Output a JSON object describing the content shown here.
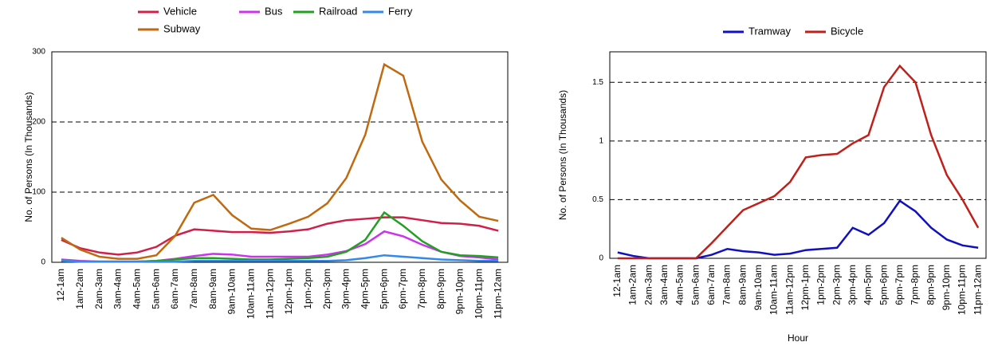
{
  "chart_data": [
    {
      "type": "line",
      "ylabel": "No. of Persons (In Thousands)",
      "categories": [
        "12-1am",
        "1am-2am",
        "2am-3am",
        "3am-4am",
        "4am-5am",
        "5am-6am",
        "6am-7am",
        "7am-8am",
        "8am-9am",
        "9am-10am",
        "10am-11am",
        "11am-12pm",
        "12pm-1pm",
        "1pm-2pm",
        "2pm-3pm",
        "3pm-4pm",
        "4pm-5pm",
        "5pm-6pm",
        "6pm-7pm",
        "7pm-8pm",
        "8pm-9pm",
        "9pm-10pm",
        "10pm-11pm",
        "11pm-12am"
      ],
      "ylim": [
        0,
        300
      ],
      "yticks": [
        0,
        100,
        200,
        300
      ],
      "grid": true,
      "series": [
        {
          "name": "Vehicle",
          "color": "#d0204a",
          "values": [
            32,
            20,
            14,
            11,
            14,
            22,
            38,
            47,
            45,
            43,
            43,
            42,
            44,
            47,
            55,
            60,
            62,
            64,
            64,
            60,
            56,
            55,
            52,
            45
          ]
        },
        {
          "name": "Bus",
          "color": "#cc33ee",
          "values": [
            4,
            2,
            1,
            1,
            1,
            2,
            5,
            9,
            12,
            11,
            8,
            8,
            8,
            8,
            11,
            16,
            26,
            44,
            37,
            25,
            15,
            9,
            7,
            4
          ]
        },
        {
          "name": "Railroad",
          "color": "#22a022",
          "values": [
            2,
            1,
            1,
            1,
            1,
            2,
            4,
            6,
            6,
            5,
            4,
            4,
            5,
            6,
            8,
            15,
            32,
            71,
            52,
            30,
            15,
            10,
            9,
            7
          ]
        },
        {
          "name": "Ferry",
          "color": "#3388ee",
          "values": [
            2,
            1,
            1,
            1,
            1,
            1,
            1,
            2,
            2,
            2,
            2,
            2,
            2,
            2,
            2,
            3,
            6,
            10,
            8,
            6,
            4,
            3,
            2,
            2
          ]
        },
        {
          "name": "Subway",
          "color": "#c06a10",
          "values": [
            35,
            18,
            8,
            5,
            5,
            10,
            38,
            85,
            96,
            67,
            48,
            46,
            55,
            65,
            84,
            120,
            182,
            282,
            266,
            172,
            118,
            88,
            65,
            59
          ]
        }
      ]
    },
    {
      "type": "line",
      "ylabel": "No. of Persons (In Thousands)",
      "xlabel": "Hour",
      "categories": [
        "12-1am",
        "1am-2am",
        "2am-3am",
        "3am-4am",
        "4am-5am",
        "5am-6am",
        "6am-7am",
        "7am-8am",
        "8am-9am",
        "9am-10am",
        "10am-11am",
        "11am-12pm",
        "12pm-1pm",
        "1pm-2pm",
        "2pm-3pm",
        "3pm-4pm",
        "4pm-5pm",
        "5pm-6pm",
        "6pm-7pm",
        "7pm-8pm",
        "8pm-9pm",
        "9pm-10pm",
        "10pm-11pm",
        "11pm-12am"
      ],
      "ylim": [
        0,
        1.76
      ],
      "yticks": [
        0,
        0.5,
        1,
        1.5
      ],
      "grid": true,
      "series": [
        {
          "name": "Tramway",
          "color": "#1010c0",
          "values": [
            0.05,
            0.02,
            0,
            0,
            0,
            0,
            0.03,
            0.08,
            0.06,
            0.05,
            0.03,
            0.04,
            0.07,
            0.08,
            0.09,
            0.26,
            0.2,
            0.3,
            0.49,
            0.4,
            0.26,
            0.16,
            0.11,
            0.09
          ]
        },
        {
          "name": "Bicycle",
          "color": "#c0201a",
          "values": [
            0,
            0,
            0,
            0,
            0,
            0,
            0.13,
            0.27,
            0.41,
            0.47,
            0.53,
            0.65,
            0.86,
            0.88,
            0.89,
            0.98,
            1.05,
            1.46,
            1.64,
            1.5,
            1.05,
            0.71,
            0.5,
            0.26
          ]
        }
      ]
    }
  ]
}
